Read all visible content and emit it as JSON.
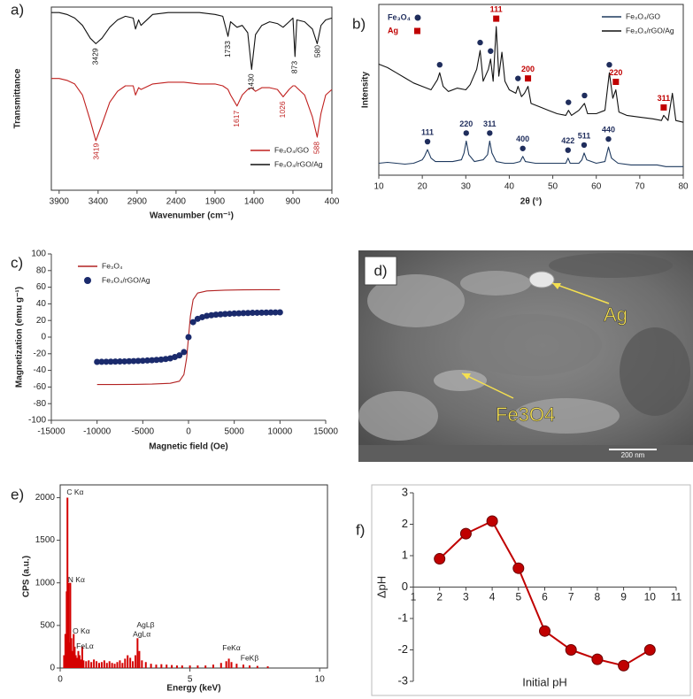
{
  "chart_data": [
    {
      "type": "line",
      "panel_label": "a)",
      "x_label": "Wavenumber (cm⁻¹)",
      "y_label": "Transmittance",
      "frame": "box",
      "legend": "lower right",
      "xlim": [
        4000,
        400
      ],
      "ylim": [
        0,
        100
      ],
      "xticks": [
        3900,
        3400,
        2900,
        2400,
        1900,
        1400,
        900,
        400
      ],
      "x": [
        4000,
        3900,
        3800,
        3700,
        3600,
        3500,
        3429,
        3350,
        3250,
        3150,
        3050,
        2950,
        2920,
        2880,
        2850,
        2700,
        2500,
        2300,
        2100,
        1900,
        1800,
        1733,
        1700,
        1617,
        1550,
        1480,
        1430,
        1380,
        1300,
        1200,
        1100,
        1026,
        950,
        900,
        873,
        850,
        750,
        650,
        588,
        540,
        480,
        400
      ],
      "series": [
        {
          "name": "Fe₃O₄/GO",
          "color": "#c0201f",
          "peak_labels": [
            3419,
            1617,
            1026,
            588
          ],
          "values": [
            61,
            61,
            60,
            58,
            52,
            38,
            27,
            36,
            48,
            54,
            57,
            57,
            52,
            56,
            55,
            58,
            59,
            59,
            58,
            58,
            57,
            55,
            52,
            46,
            52,
            55,
            56,
            54,
            56,
            56,
            55,
            51,
            55,
            57,
            57,
            56,
            52,
            40,
            29,
            42,
            52,
            55
          ]
        },
        {
          "name": "Fe₃O₄/rGO/Ag",
          "color": "#111111",
          "peak_labels": [
            3429,
            1733,
            1430,
            873,
            580
          ],
          "values": [
            97,
            97,
            96,
            94,
            90,
            83,
            80,
            83,
            89,
            93,
            95,
            94,
            88,
            93,
            90,
            96,
            97,
            97,
            97,
            96,
            95,
            84,
            92,
            89,
            90,
            86,
            66,
            85,
            90,
            92,
            91,
            89,
            92,
            94,
            73,
            93,
            92,
            88,
            80,
            90,
            93,
            94
          ]
        }
      ]
    },
    {
      "type": "line",
      "panel_label": "b)",
      "x_label": "2θ (°)",
      "y_label": "Intensity",
      "frame": "box",
      "legend": "upper right",
      "xlim": [
        10,
        80
      ],
      "ylim": [
        0,
        100
      ],
      "xticks": [
        10,
        20,
        30,
        40,
        50,
        60,
        70,
        80
      ],
      "phase_legend": [
        {
          "name": "Fe₃O₄",
          "marker": "circle",
          "color": "#1f2d5c"
        },
        {
          "name": "Ag",
          "marker": "square",
          "color": "#c00000"
        }
      ],
      "series": [
        {
          "name": "Fe₃O₄/GO",
          "color": "#1f3a5f",
          "x": [
            10,
            12,
            14,
            16,
            18,
            19,
            20,
            20.5,
            21.2,
            22,
            23,
            25,
            27,
            29,
            29.6,
            30.1,
            30.7,
            32,
            34,
            35,
            35.5,
            36,
            37,
            39,
            41,
            42.5,
            43.1,
            43.7,
            46,
            50,
            53,
            53.5,
            54,
            56,
            56.7,
            57.2,
            57.8,
            60,
            62,
            62.8,
            63.5,
            65,
            68,
            71,
            74,
            76,
            78,
            80
          ],
          "values": [
            7,
            7.5,
            7,
            6.5,
            7,
            8,
            9,
            11,
            15,
            10,
            8,
            8,
            8,
            9,
            13,
            20,
            12,
            8,
            9,
            12,
            20,
            13,
            8,
            7,
            7,
            8,
            11,
            8,
            7,
            7,
            7,
            10,
            7,
            7,
            9,
            13,
            9,
            7,
            8,
            16.5,
            10,
            7,
            6,
            6,
            6,
            5,
            5,
            5
          ],
          "peaks": [
            {
              "x": 21.2,
              "marker": "circle",
              "label": "111"
            },
            {
              "x": 30.1,
              "marker": "circle",
              "label": "220"
            },
            {
              "x": 35.5,
              "marker": "circle",
              "label": "311"
            },
            {
              "x": 43.1,
              "marker": "circle",
              "label": "400"
            },
            {
              "x": 53.5,
              "marker": "circle",
              "label": "422"
            },
            {
              "x": 57.2,
              "marker": "circle",
              "label": "511"
            },
            {
              "x": 62.8,
              "marker": "circle",
              "label": "440"
            }
          ]
        },
        {
          "name": "Fe₃O₄/rGO/Ag",
          "color": "#111111",
          "x": [
            10,
            12,
            14,
            16,
            18,
            20,
            22,
            23.5,
            24,
            24.8,
            26,
            28,
            30,
            31,
            32.5,
            33.3,
            34,
            35.2,
            35.7,
            36.3,
            37,
            37.6,
            38.3,
            39,
            40,
            41.5,
            42,
            42.8,
            43.5,
            44.3,
            45,
            47,
            49,
            51,
            53,
            53.6,
            54.3,
            56,
            57.3,
            58,
            60,
            62,
            63,
            63.8,
            64.5,
            65.2,
            67,
            70,
            73,
            75,
            75.5,
            76.5,
            77.5,
            78.3,
            80
          ],
          "values": [
            65,
            63,
            60,
            57,
            54,
            52,
            50,
            56,
            60,
            52,
            49,
            51,
            50,
            53,
            62,
            73,
            55,
            62,
            68,
            55,
            87,
            58,
            72,
            55,
            50,
            48,
            52,
            46,
            48,
            52,
            42,
            40,
            38,
            36,
            35,
            38,
            35,
            38,
            42,
            36,
            36,
            38,
            60,
            45,
            50,
            37,
            35,
            34,
            33,
            32,
            35,
            32,
            48,
            32,
            31
          ],
          "peaks": [
            {
              "x": 24,
              "marker": "circle"
            },
            {
              "x": 33.3,
              "marker": "circle"
            },
            {
              "x": 35.7,
              "marker": "circle"
            },
            {
              "x": 37,
              "marker": "square",
              "label": "111"
            },
            {
              "x": 42,
              "marker": "circle"
            },
            {
              "x": 44.3,
              "marker": "square",
              "label": "200"
            },
            {
              "x": 53.6,
              "marker": "circle"
            },
            {
              "x": 57.3,
              "marker": "circle"
            },
            {
              "x": 63,
              "marker": "circle"
            },
            {
              "x": 64.5,
              "marker": "square",
              "label": "220"
            },
            {
              "x": 75.5,
              "marker": "square",
              "label": "311"
            }
          ]
        }
      ]
    },
    {
      "type": "line",
      "panel_label": "c)",
      "x_label": "Magnetic field (Oe)",
      "y_label": "Magnetization (emu g⁻¹)",
      "frame": "axes",
      "legend": "upper left",
      "xlim": [
        -15000,
        15000
      ],
      "ylim": [
        -100,
        100
      ],
      "xticks": [
        -15000,
        -10000,
        -5000,
        0,
        5000,
        10000,
        15000
      ],
      "yticks": [
        -100,
        -80,
        -60,
        -40,
        -20,
        0,
        20,
        40,
        60,
        80,
        100
      ],
      "series": [
        {
          "name": "Fe₃O₄",
          "color": "#b22222",
          "x": [
            -10000,
            -8000,
            -6000,
            -4000,
            -2000,
            -1000,
            -500,
            -200,
            0,
            200,
            500,
            1000,
            2000,
            4000,
            6000,
            8000,
            10000
          ],
          "values": [
            -57,
            -57,
            -56.8,
            -56.5,
            -55.5,
            -53,
            -45,
            -25,
            0,
            25,
            45,
            53,
            55.5,
            56.5,
            56.8,
            57,
            57
          ]
        },
        {
          "name": "Fe₃O₄/rGO/Ag",
          "color": "#1a2a6c",
          "line": false,
          "marker": "circle",
          "x": [
            -10000,
            -9500,
            -9000,
            -8500,
            -8000,
            -7500,
            -7000,
            -6500,
            -6000,
            -5500,
            -5000,
            -4500,
            -4000,
            -3500,
            -3000,
            -2500,
            -2000,
            -1500,
            -1000,
            -500,
            0,
            500,
            1000,
            1500,
            2000,
            2500,
            3000,
            3500,
            4000,
            4500,
            5000,
            5500,
            6000,
            6500,
            7000,
            7500,
            8000,
            8500,
            9000,
            9500,
            10000
          ],
          "values": [
            -29.8,
            -29.7,
            -29.6,
            -29.5,
            -29.4,
            -29.3,
            -29.2,
            -29,
            -28.8,
            -28.6,
            -28.4,
            -28.1,
            -27.8,
            -27.4,
            -27,
            -26.3,
            -25.5,
            -24,
            -22,
            -18,
            0,
            18,
            22,
            24,
            25.5,
            26.3,
            27,
            27.4,
            27.8,
            28.1,
            28.4,
            28.6,
            28.8,
            29,
            29.2,
            29.3,
            29.4,
            29.5,
            29.6,
            29.7,
            29.8
          ]
        }
      ]
    },
    {
      "type": "bar",
      "panel_label": "e)",
      "x_label": "Energy (keV)",
      "y_label": "CPS (a.u.)",
      "frame": "box",
      "color": "#d40000",
      "xlim": [
        0,
        10.3
      ],
      "ylim": [
        0,
        2150
      ],
      "xticks": [
        0,
        5,
        10
      ],
      "yticks": [
        0,
        500,
        1000,
        1500,
        2000
      ],
      "x": [
        0.15,
        0.2,
        0.25,
        0.28,
        0.32,
        0.36,
        0.39,
        0.43,
        0.48,
        0.52,
        0.56,
        0.6,
        0.65,
        0.7,
        0.75,
        0.8,
        0.85,
        0.9,
        1.0,
        1.1,
        1.2,
        1.3,
        1.4,
        1.5,
        1.6,
        1.7,
        1.8,
        1.9,
        2.0,
        2.1,
        2.2,
        2.3,
        2.4,
        2.5,
        2.6,
        2.7,
        2.8,
        2.9,
        2.98,
        3.05,
        3.15,
        3.3,
        3.5,
        3.7,
        3.9,
        4.1,
        4.3,
        4.5,
        4.7,
        5.0,
        5.3,
        5.6,
        5.9,
        6.2,
        6.4,
        6.5,
        6.6,
        6.8,
        7.06,
        7.3,
        7.6,
        8.0
      ],
      "values": [
        150,
        400,
        900,
        2000,
        1000,
        300,
        1000,
        350,
        200,
        400,
        250,
        150,
        120,
        200,
        150,
        100,
        250,
        90,
        80,
        90,
        70,
        100,
        80,
        60,
        70,
        90,
        60,
        80,
        60,
        50,
        70,
        90,
        60,
        110,
        150,
        120,
        80,
        150,
        350,
        200,
        90,
        70,
        50,
        40,
        45,
        40,
        35,
        30,
        30,
        30,
        30,
        30,
        40,
        60,
        80,
        110,
        70,
        50,
        40,
        30,
        25,
        20
      ],
      "annotations": [
        {
          "text": "C Kα",
          "x": 0.25,
          "y": 2060
        },
        {
          "text": "N Kα",
          "x": 0.3,
          "y": 1030
        },
        {
          "text": "O Kα",
          "x": 0.48,
          "y": 430
        },
        {
          "text": "FeLα",
          "x": 0.62,
          "y": 250
        },
        {
          "text": "AgLβ",
          "x": 2.95,
          "y": 500
        },
        {
          "text": "AgLα",
          "x": 2.8,
          "y": 390
        },
        {
          "text": "FeKα",
          "x": 6.25,
          "y": 230
        },
        {
          "text": "FeKβ",
          "x": 6.95,
          "y": 110
        }
      ]
    },
    {
      "type": "line",
      "panel_label": "f)",
      "x_label": "Initial pH",
      "y_label": "ΔpH",
      "frame": "cross",
      "xlim": [
        1,
        11
      ],
      "ylim": [
        -3,
        3
      ],
      "xticks": [
        1,
        2,
        3,
        4,
        5,
        6,
        7,
        8,
        9,
        10,
        11
      ],
      "yticks": [
        -3,
        -2,
        -1,
        0,
        1,
        2,
        3
      ],
      "series": [
        {
          "color": "#c00000",
          "marker": "circle",
          "x": [
            2,
            3,
            4,
            5,
            6,
            7,
            8,
            9,
            10
          ],
          "values": [
            0.9,
            1.7,
            2.1,
            0.6,
            -1.4,
            -2.0,
            -2.3,
            -2.5,
            -2.0
          ]
        }
      ]
    }
  ],
  "sem_image": {
    "panel_label": "d)",
    "labels": [
      "Ag",
      "Fe3O4"
    ],
    "scale_bar": "200 nm"
  }
}
